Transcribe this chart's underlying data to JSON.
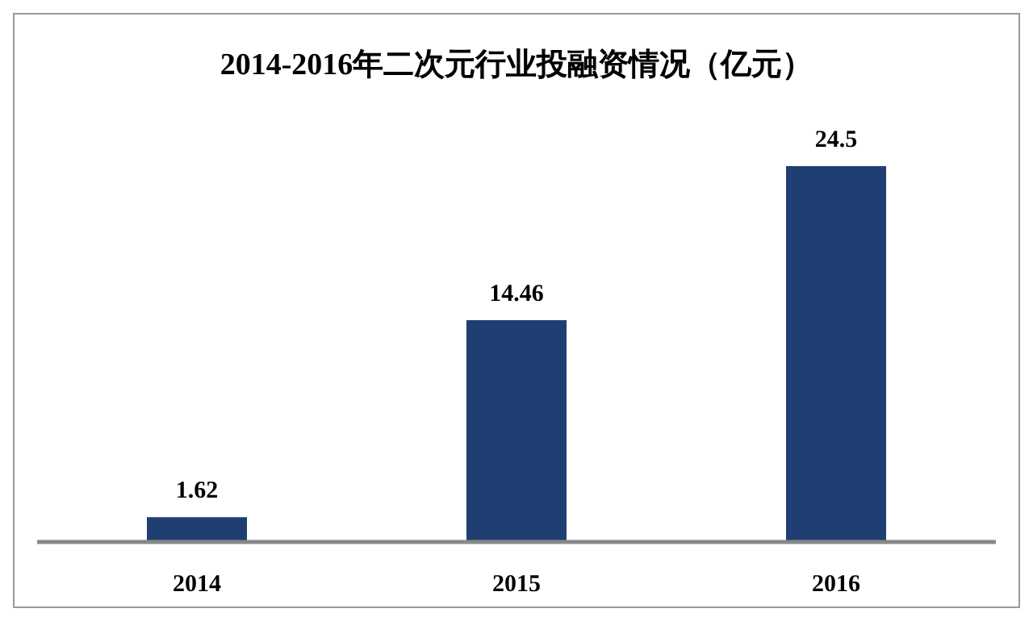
{
  "chart_data": {
    "type": "bar",
    "title": "2014-2016年二次元行业投融资情况（亿元）",
    "categories": [
      "2014",
      "2015",
      "2016"
    ],
    "values": [
      1.62,
      14.46,
      24.5
    ],
    "color": "#1f3f73",
    "data_labels": true
  }
}
